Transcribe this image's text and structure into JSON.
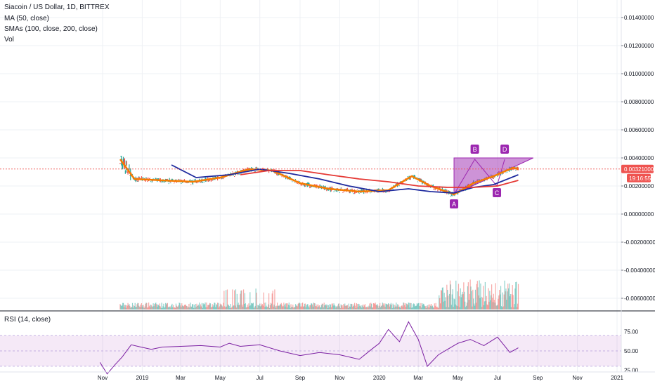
{
  "legend": {
    "title": "Siacoin / US Dollar, 1D, BITTREX",
    "ma": "MA (50, close)",
    "smas": "SMAs (100, close, 200, close)",
    "vol": "Vol"
  },
  "rsi_legend": "RSI (14, close)",
  "price_tag": "0.00321000",
  "countdown_tag": "19:16:55",
  "pattern_labels": [
    "A",
    "B",
    "C",
    "D"
  ],
  "colors": {
    "candle_up": "#26a69a",
    "candle_down": "#ef5350",
    "ma50": "#f57c00",
    "sma100": "#1e2a9e",
    "sma200": "#e53935",
    "rsi": "#7b1fa2",
    "pattern_fill": "#9c27b0",
    "price_line": "#ef5350"
  },
  "chart_data": [
    {
      "type": "line",
      "title": "Siacoin / US Dollar, 1D, BITTREX",
      "x_tick_labels": [
        "Nov",
        "2019",
        "Mar",
        "May",
        "Jul",
        "Sep",
        "Nov",
        "2020",
        "Mar",
        "May",
        "Jul",
        "Sep",
        "Nov",
        "2021"
      ],
      "y_tick_labels": [
        "0.01400000",
        "0.01200000",
        "0.01000000",
        "0.00800000",
        "0.00600000",
        "0.00400000",
        "0.00200000",
        "0.00000000",
        "-0.00200000",
        "-0.00400000",
        "-0.00600000"
      ],
      "ylim": [
        -0.0074,
        0.0146
      ],
      "last_price": 0.00321,
      "grid": true,
      "series": [
        {
          "name": "MA (50, close)",
          "x": [
            "2018-11-28",
            "2018-12-20",
            "2019-02-01",
            "2019-03-20",
            "2019-05-01",
            "2019-06-15",
            "2019-07-20",
            "2019-09-01",
            "2019-10-15",
            "2019-12-01",
            "2020-01-15",
            "2020-02-20",
            "2020-03-20",
            "2020-04-25",
            "2020-05-25",
            "2020-06-25",
            "2020-07-25",
            "2020-08-02"
          ],
          "y": [
            0.0039,
            0.0025,
            0.0024,
            0.0023,
            0.0026,
            0.0032,
            0.0031,
            0.0022,
            0.0018,
            0.0016,
            0.0017,
            0.0027,
            0.002,
            0.0014,
            0.0022,
            0.0027,
            0.0033,
            0.0032
          ]
        },
        {
          "name": "SMA 100",
          "x": [
            "2019-02-15",
            "2019-03-25",
            "2019-05-15",
            "2019-07-01",
            "2019-08-15",
            "2019-10-01",
            "2019-11-15",
            "2020-01-01",
            "2020-02-15",
            "2020-03-20",
            "2020-04-25",
            "2020-05-25",
            "2020-06-25",
            "2020-08-02"
          ],
          "y": [
            0.0035,
            0.0026,
            0.0028,
            0.0032,
            0.0029,
            0.0025,
            0.002,
            0.0016,
            0.0018,
            0.0016,
            0.0015,
            0.0019,
            0.0021,
            0.0028
          ]
        },
        {
          "name": "SMA 200",
          "x": [
            "2019-06-01",
            "2019-07-15",
            "2019-09-01",
            "2019-10-15",
            "2019-12-01",
            "2020-01-15",
            "2020-03-01",
            "2020-04-15",
            "2020-05-25",
            "2020-07-01",
            "2020-08-02"
          ],
          "y": [
            0.0028,
            0.0031,
            0.0031,
            0.0028,
            0.0025,
            0.0023,
            0.002,
            0.0019,
            0.0019,
            0.002,
            0.0024
          ]
        }
      ],
      "annotations": [
        {
          "label": "A",
          "x": "2020-04-25",
          "y": 0.0014
        },
        {
          "label": "B",
          "x": "2020-05-27",
          "y": 0.0039
        },
        {
          "label": "C",
          "x": "2020-06-30",
          "y": 0.002
        },
        {
          "label": "D",
          "x": "2020-07-12",
          "y": 0.0039
        }
      ]
    },
    {
      "type": "line",
      "title": "RSI (14, close)",
      "y_tick_labels": [
        "75.00",
        "50.00",
        "25.00"
      ],
      "ylim": [
        18,
        93
      ],
      "band": [
        30,
        70
      ],
      "series": [
        {
          "name": "RSI (14, close)",
          "x": [
            "2018-10-28",
            "2018-11-08",
            "2018-11-20",
            "2018-12-01",
            "2018-12-15",
            "2018-12-30",
            "2019-01-15",
            "2019-02-01",
            "2019-03-01",
            "2019-04-01",
            "2019-05-01",
            "2019-05-15",
            "2019-06-01",
            "2019-07-01",
            "2019-08-01",
            "2019-09-01",
            "2019-10-01",
            "2019-11-01",
            "2019-12-01",
            "2019-12-20",
            "2020-01-01",
            "2020-01-15",
            "2020-02-01",
            "2020-02-15",
            "2020-03-01",
            "2020-03-15",
            "2020-04-01",
            "2020-05-01",
            "2020-05-20",
            "2020-06-10",
            "2020-07-01",
            "2020-07-20",
            "2020-08-02"
          ],
          "y": [
            35,
            20,
            32,
            42,
            58,
            55,
            52,
            55,
            56,
            57,
            55,
            60,
            56,
            58,
            50,
            44,
            48,
            45,
            39,
            52,
            60,
            78,
            62,
            88,
            65,
            30,
            45,
            60,
            65,
            57,
            68,
            48,
            54
          ]
        }
      ]
    }
  ]
}
